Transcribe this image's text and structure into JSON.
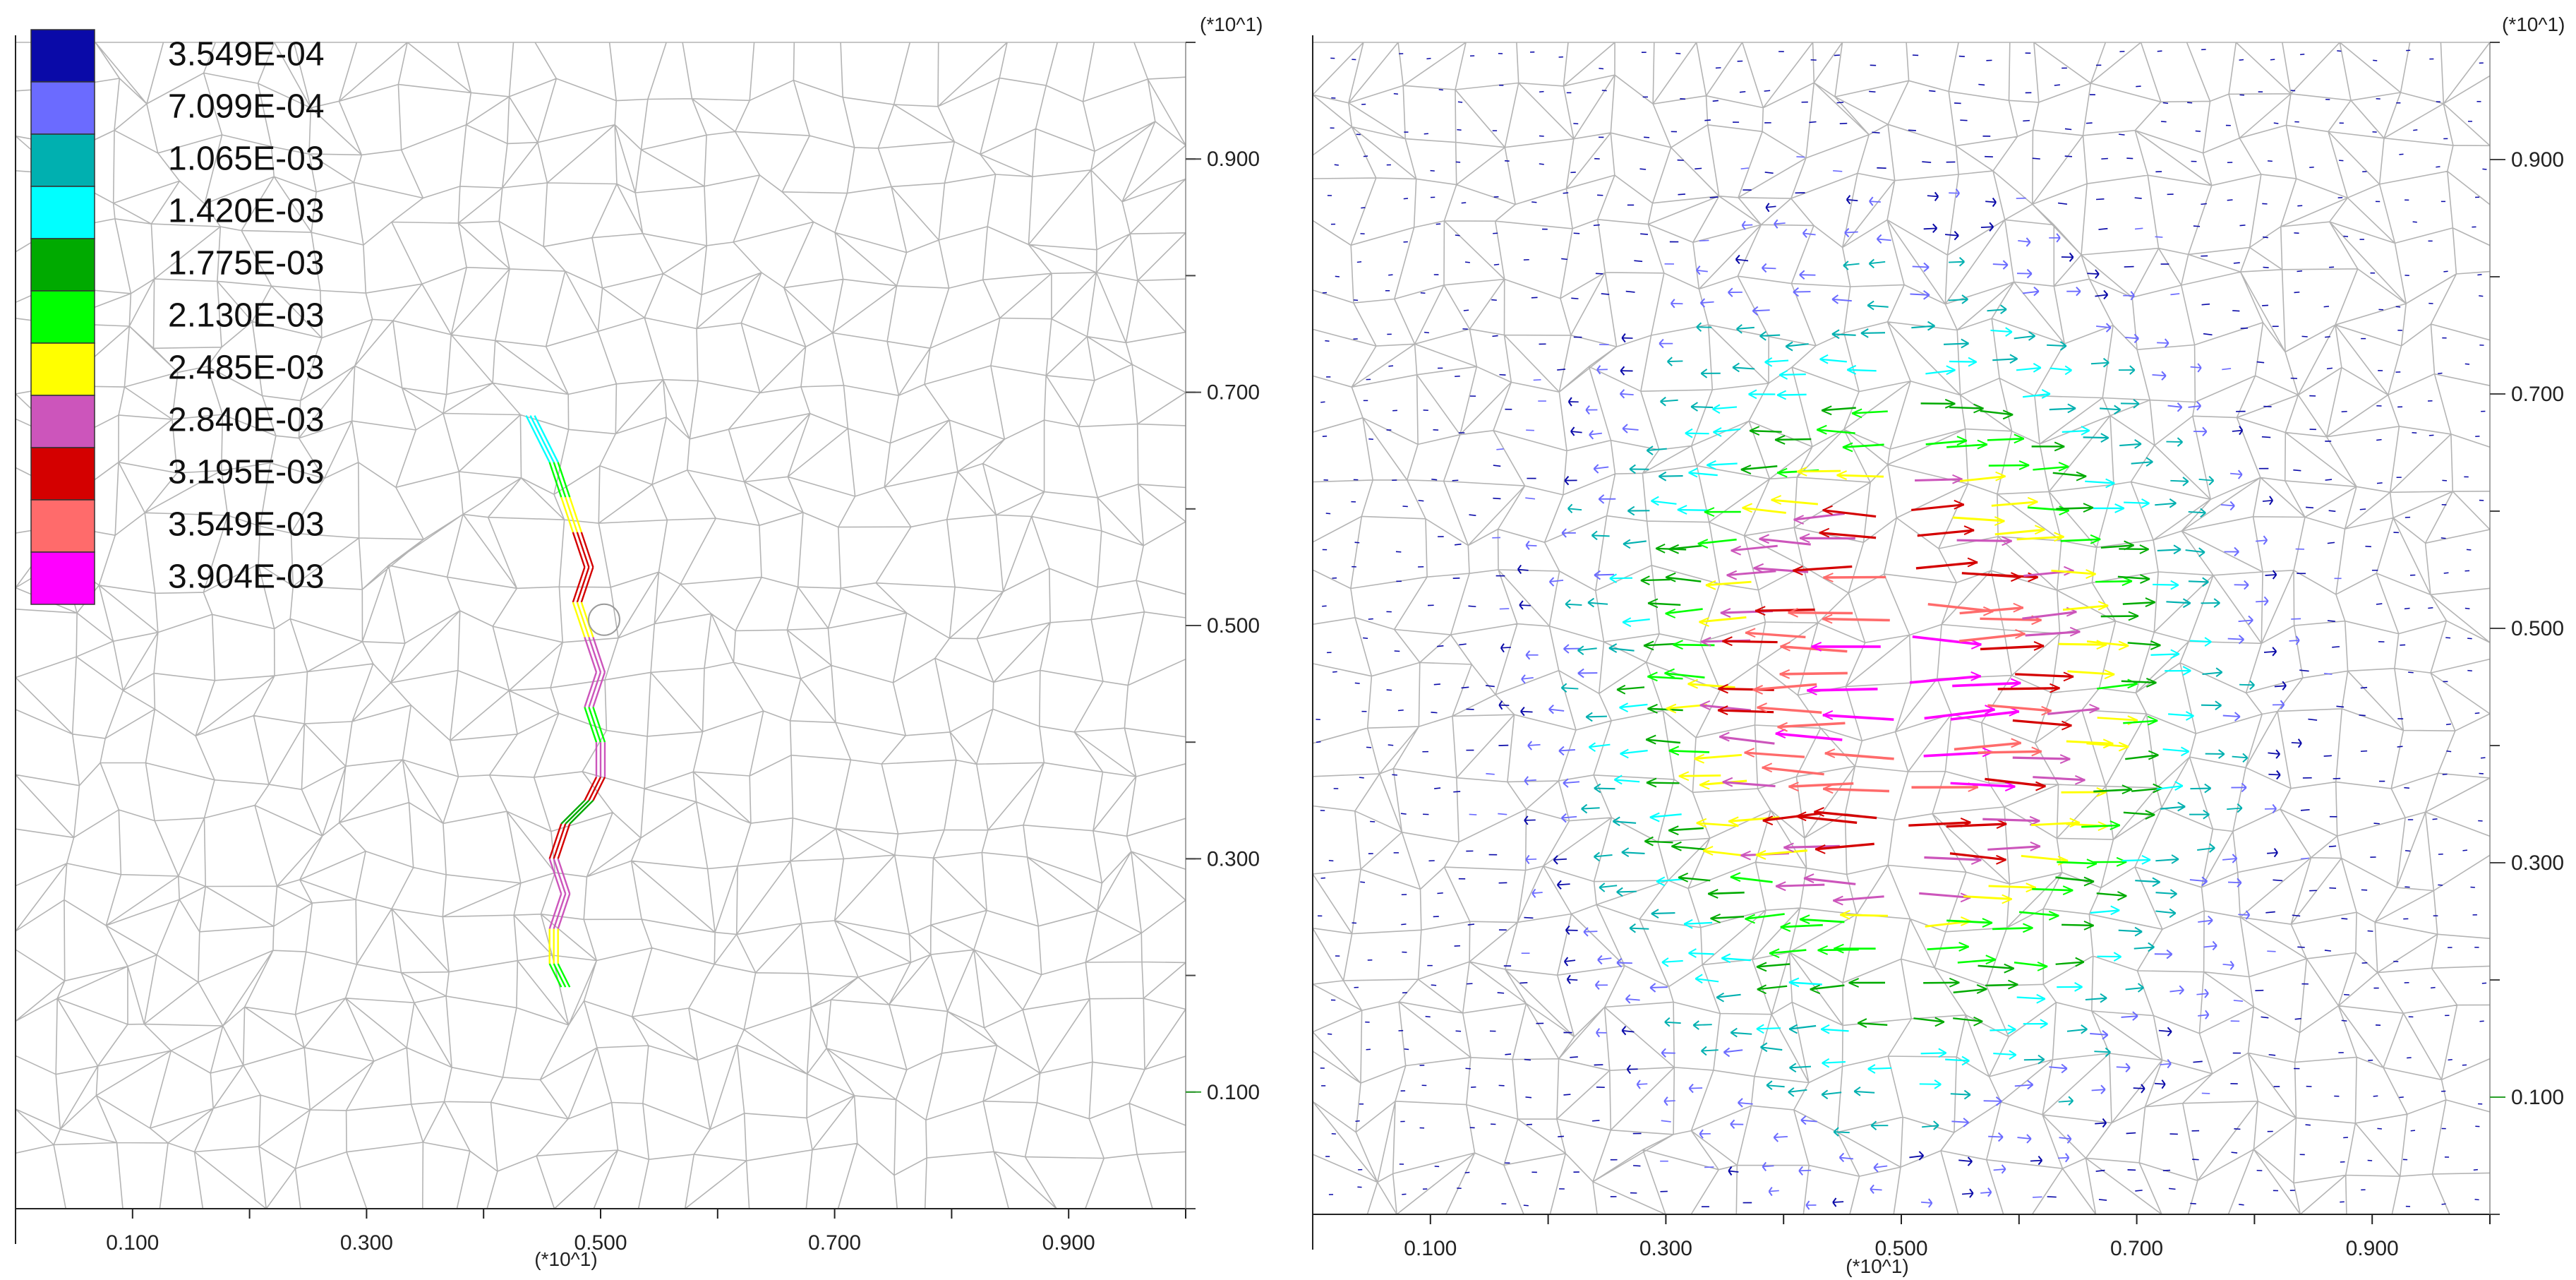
{
  "chart_data": [
    {
      "type": "scatter",
      "name": "crack-contour-plot",
      "description_marks": "crack segments colored by magnitude over a voronoi grain mesh",
      "x_unit_label": "(*10^1)",
      "y_unit_label": "(*10^1)",
      "xlim": [
        0.0,
        1.0
      ],
      "ylim": [
        0.0,
        1.0
      ],
      "x_ticks": [
        0.1,
        0.3,
        0.5,
        0.7,
        0.9
      ],
      "x_tick_labels": [
        "0.100",
        "0.300",
        "0.500",
        "0.700",
        "0.900"
      ],
      "y_ticks": [
        0.1,
        0.3,
        0.5,
        0.7,
        0.9
      ],
      "y_tick_labels": [
        "0.100",
        "0.300",
        "0.500",
        "0.700",
        "0.900"
      ],
      "legend": {
        "position": "top-left",
        "entries": [
          {
            "label": "3.549E-04",
            "color": "#0a0aa8"
          },
          {
            "label": "7.099E-04",
            "color": "#6b6bff"
          },
          {
            "label": "1.065E-03",
            "color": "#00b0b0"
          },
          {
            "label": "1.420E-03",
            "color": "#00ffff"
          },
          {
            "label": "1.775E-03",
            "color": "#00aa00"
          },
          {
            "label": "2.130E-03",
            "color": "#00ff00"
          },
          {
            "label": "2.485E-03",
            "color": "#ffff00"
          },
          {
            "label": "2.840E-03",
            "color": "#cc55bb"
          },
          {
            "label": "3.195E-03",
            "color": "#d40000"
          },
          {
            "label": "3.549E-03",
            "color": "#ff6b6b"
          },
          {
            "label": "3.904E-03",
            "color": "#ff00ff"
          }
        ]
      },
      "crack_path": [
        {
          "x": 0.44,
          "y": 0.68,
          "level": 3
        },
        {
          "x": 0.46,
          "y": 0.64,
          "level": 5
        },
        {
          "x": 0.47,
          "y": 0.61,
          "level": 6
        },
        {
          "x": 0.48,
          "y": 0.58,
          "level": 8
        },
        {
          "x": 0.49,
          "y": 0.55,
          "level": 8
        },
        {
          "x": 0.48,
          "y": 0.52,
          "level": 6
        },
        {
          "x": 0.49,
          "y": 0.49,
          "level": 7
        },
        {
          "x": 0.5,
          "y": 0.46,
          "level": 7
        },
        {
          "x": 0.49,
          "y": 0.43,
          "level": 5
        },
        {
          "x": 0.5,
          "y": 0.4,
          "level": 7
        },
        {
          "x": 0.5,
          "y": 0.37,
          "level": 8
        },
        {
          "x": 0.49,
          "y": 0.35,
          "level": 4
        },
        {
          "x": 0.47,
          "y": 0.33,
          "level": 8
        },
        {
          "x": 0.46,
          "y": 0.3,
          "level": 7
        },
        {
          "x": 0.47,
          "y": 0.27,
          "level": 7
        },
        {
          "x": 0.46,
          "y": 0.24,
          "level": 6
        },
        {
          "x": 0.46,
          "y": 0.21,
          "level": 5
        },
        {
          "x": 0.47,
          "y": 0.19,
          "level": 3
        }
      ]
    },
    {
      "type": "scatter",
      "name": "displacement-vector-plot",
      "description_marks": "displacement arrows over a voronoi grain mesh, pointing away from the vertical crack line x=0.5",
      "x_unit_label": "(*10^1)",
      "y_unit_label": "(*10^1)",
      "xlim": [
        0.0,
        1.0
      ],
      "ylim": [
        0.0,
        1.0
      ],
      "x_ticks": [
        0.1,
        0.3,
        0.5,
        0.7,
        0.9
      ],
      "x_tick_labels": [
        "0.100",
        "0.300",
        "0.500",
        "0.700",
        "0.900"
      ],
      "y_ticks": [
        0.1,
        0.3,
        0.5,
        0.7,
        0.9
      ],
      "y_tick_labels": [
        "0.100",
        "0.300",
        "0.500",
        "0.700",
        "0.900"
      ],
      "field": {
        "center_x": 0.5,
        "center_y": 0.44,
        "sigma_x": 0.15,
        "sigma_y": 0.2,
        "max_magnitude": 0.003904
      }
    }
  ]
}
